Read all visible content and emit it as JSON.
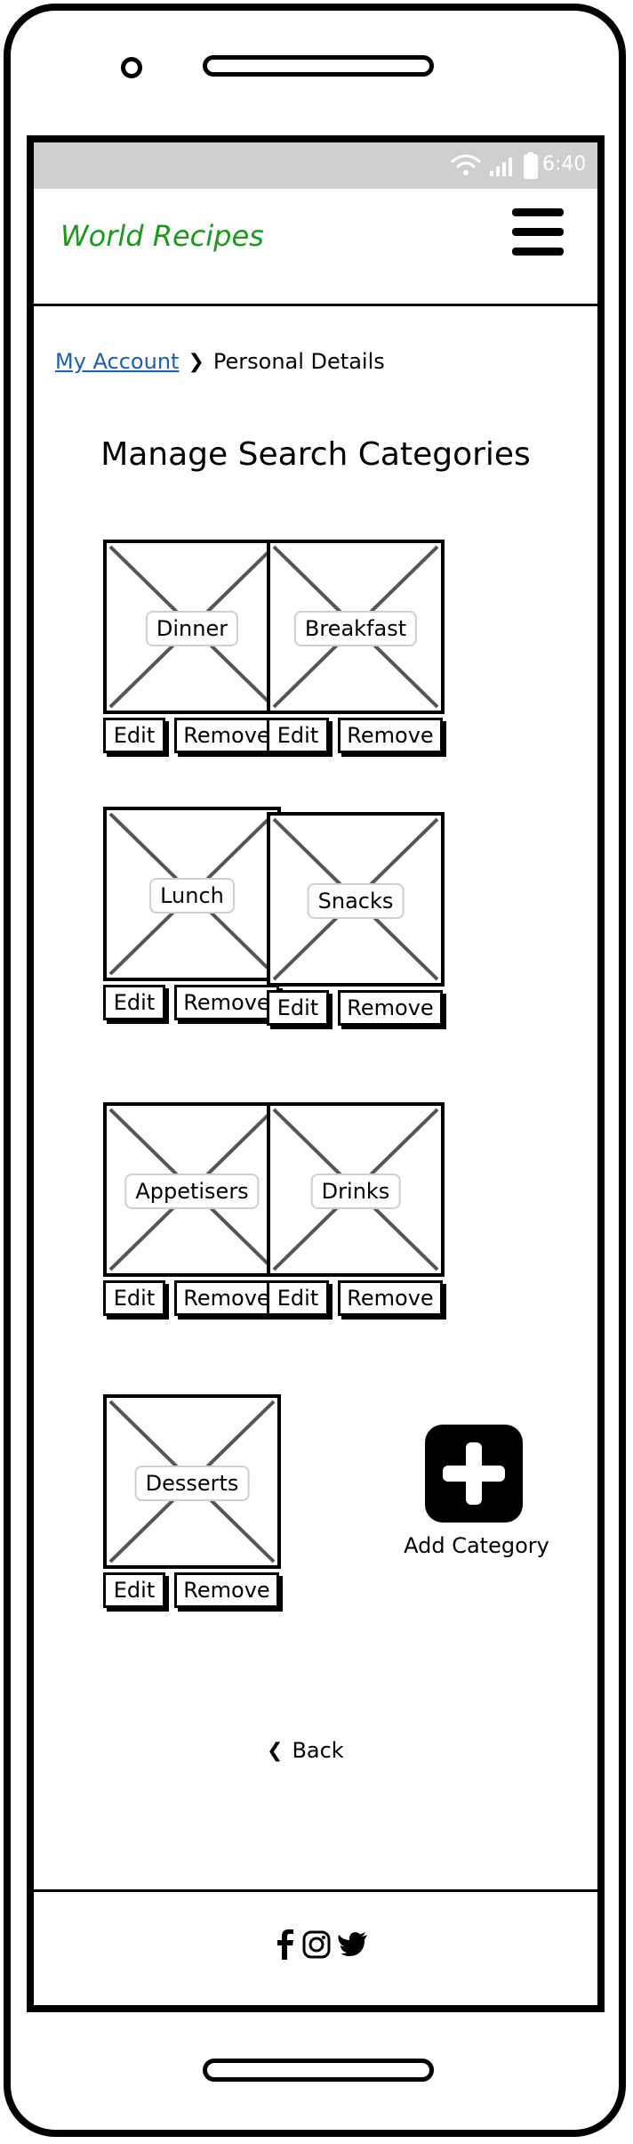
{
  "status_bar": {
    "time": "6:40",
    "icons": [
      "wifi-icon",
      "signal-icon",
      "battery-icon"
    ]
  },
  "header": {
    "title": "World Recipes",
    "menu_icon": "hamburger-menu-icon"
  },
  "breadcrumb": {
    "parent": "My Account",
    "current": "Personal Details"
  },
  "page": {
    "title": "Manage Search Categories"
  },
  "categories": [
    {
      "name": "Dinner",
      "edit": "Edit",
      "remove": "Remove"
    },
    {
      "name": "Breakfast",
      "edit": "Edit",
      "remove": "Remove"
    },
    {
      "name": "Lunch",
      "edit": "Edit",
      "remove": "Remove"
    },
    {
      "name": "Snacks",
      "edit": "Edit",
      "remove": "Remove"
    },
    {
      "name": "Appetisers",
      "edit": "Edit",
      "remove": "Remove"
    },
    {
      "name": "Drinks",
      "edit": "Edit",
      "remove": "Remove"
    },
    {
      "name": "Desserts",
      "edit": "Edit",
      "remove": "Remove"
    }
  ],
  "add_category": {
    "label": "Add Category",
    "icon": "plus-icon"
  },
  "back": {
    "label": "Back",
    "icon": "chevron-left-icon"
  },
  "footer": {
    "social_icons": [
      "facebook-icon",
      "instagram-icon",
      "twitter-icon"
    ]
  },
  "colors": {
    "title_green": "#1a9a1a",
    "link_blue": "#1a5fb4",
    "status_bar_gray": "#cfcfcf"
  }
}
